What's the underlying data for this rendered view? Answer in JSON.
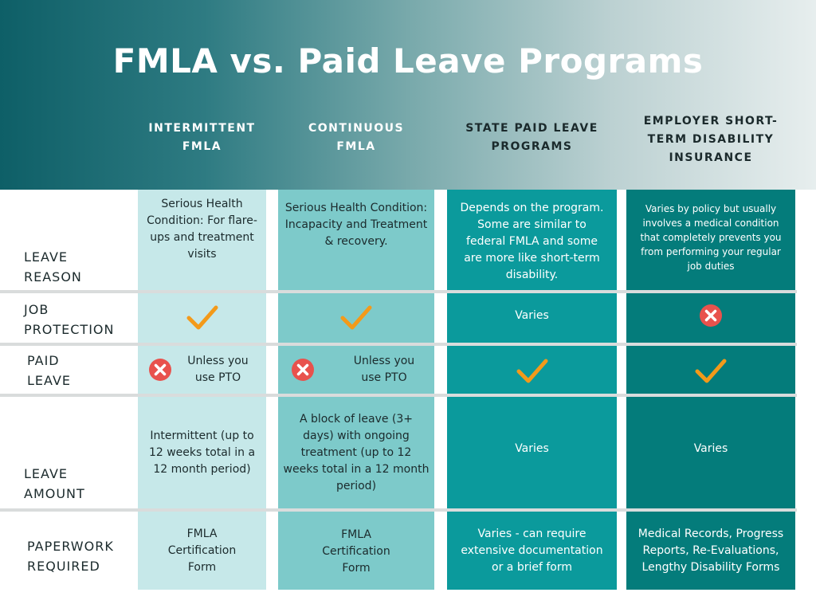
{
  "title": "FMLA vs. Paid Leave Programs",
  "columns": [
    "INTERMITTENT FMLA",
    "CONTINUOUS FMLA",
    "STATE PAID LEAVE PROGRAMS",
    "EMPLOYER SHORT-TERM DISABILITY INSURANCE"
  ],
  "columns_lines": [
    [
      "INTERMITTENT",
      "FMLA"
    ],
    [
      "CONTINUOUS",
      "FMLA"
    ],
    [
      "STATE PAID LEAVE",
      "PROGRAMS"
    ],
    [
      "EMPLOYER SHORT-",
      "TERM DISABILITY",
      "INSURANCE"
    ]
  ],
  "rows": {
    "leave_reason": {
      "label": [
        "LEAVE",
        "REASON"
      ],
      "cells": [
        "Serious Health Condition: For flare-ups and treatment visits",
        "Serious Health Condition: Incapacity and Treatment & recovery.",
        "Depends on the program. Some are similar to federal FMLA and some are more like short-term disability.",
        "Varies by policy but usually involves a medical condition that completely prevents you from performing your regular job duties"
      ]
    },
    "job_protection": {
      "label": [
        "JOB",
        "PROTECTION"
      ],
      "cells": [
        "check-icon",
        "check-icon",
        "Varies",
        "x-icon"
      ]
    },
    "paid_leave": {
      "label": [
        "PAID",
        "LEAVE"
      ],
      "cells": [
        "Unless you use PTO",
        "Unless you use PTO",
        "check-icon",
        "check-icon"
      ]
    },
    "leave_amount": {
      "label": [
        "LEAVE",
        "AMOUNT"
      ],
      "cells": [
        "Intermittent (up to 12 weeks total in a 12 month period)",
        "A block of leave (3+ days) with ongoing treatment (up to 12 weeks total in a 12 month period)",
        "Varies",
        "Varies"
      ]
    },
    "paperwork": {
      "label": [
        "PAPERWORK",
        "REQUIRED"
      ],
      "cells": [
        "FMLA Certification Form",
        "FMLA Certification Form",
        "Varies - can require extensive documentation or a brief form",
        "Medical Records, Progress Reports, Re-Evaluations, Lengthy Disability Forms"
      ]
    }
  },
  "colors": {
    "col1": "#c6e8e9",
    "col2": "#7dcaca",
    "col3": "#0b9a9c",
    "col4": "#047c7b",
    "check": "#f39a1a",
    "x": "#e8524d"
  }
}
